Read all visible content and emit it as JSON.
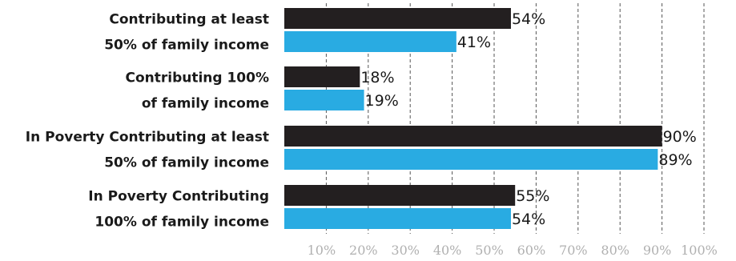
{
  "chart_data": {
    "type": "bar",
    "orientation": "horizontal",
    "categories": [
      [
        "Contributing at least",
        "50% of family income"
      ],
      [
        "Contributing 100%",
        "of family income"
      ],
      [
        "In Poverty Contributing at least",
        "50% of family income"
      ],
      [
        "In Poverty Contributing",
        "100% of family income"
      ]
    ],
    "series": [
      {
        "color": "#231f20",
        "values": [
          54,
          18,
          90,
          55
        ],
        "labels": [
          "54%",
          "18%",
          "90%",
          "55%"
        ]
      },
      {
        "color": "#29abe2",
        "values": [
          41,
          19,
          89,
          54
        ],
        "labels": [
          "41%",
          "19%",
          "89%",
          "54%"
        ]
      }
    ],
    "x_ticks": [
      {
        "value": 10,
        "label": "10%"
      },
      {
        "value": 20,
        "label": "20%"
      },
      {
        "value": 30,
        "label": "30%"
      },
      {
        "value": 40,
        "label": "40%"
      },
      {
        "value": 50,
        "label": "50%"
      },
      {
        "value": 60,
        "label": "60%"
      },
      {
        "value": 70,
        "label": "70%"
      },
      {
        "value": 80,
        "label": "80%"
      },
      {
        "value": 90,
        "label": "90%"
      },
      {
        "value": 100,
        "label": "100%"
      }
    ],
    "xlim": [
      0,
      100
    ],
    "grid": "vertical dashed",
    "legend": "none",
    "title": "",
    "xlabel": "",
    "ylabel": ""
  }
}
